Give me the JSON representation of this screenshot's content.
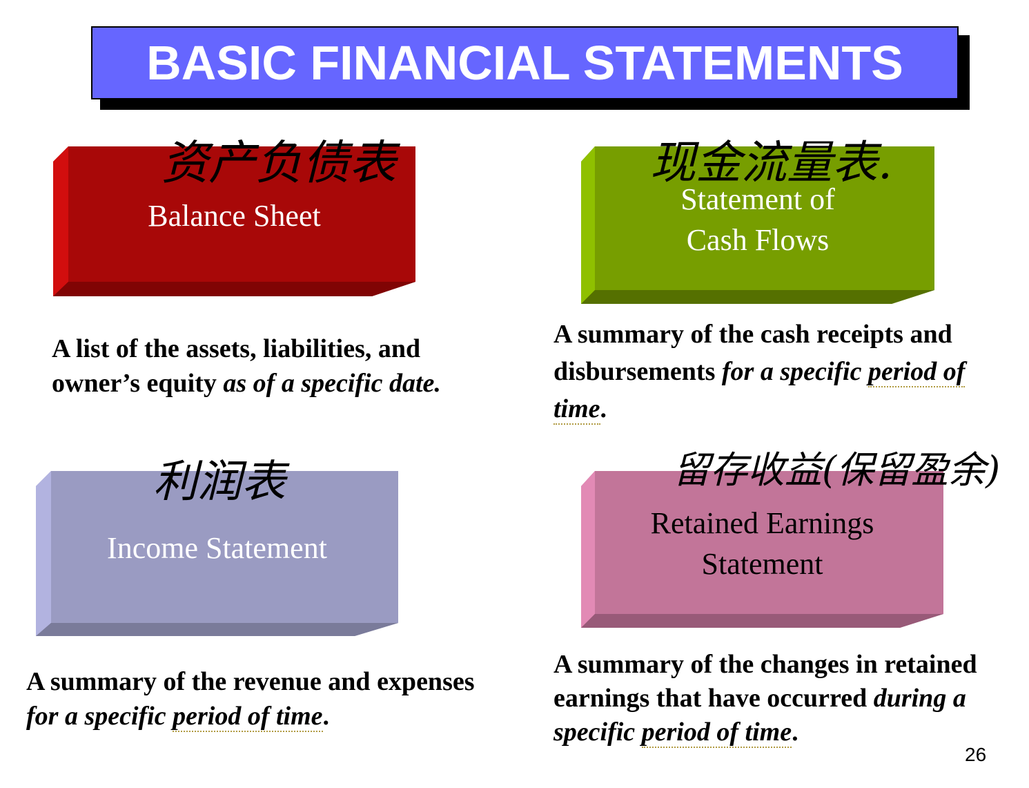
{
  "title": "BASIC FINANCIAL STATEMENTS",
  "page_number": "26",
  "colors": {
    "title_bg": "#6666ff",
    "balance": "#a80808",
    "cash": "#779e00",
    "income": "#9a9bc2",
    "retained": "#c27599"
  },
  "balance": {
    "hand": "资产负债表",
    "label": "Balance Sheet",
    "desc_plain": "A list of the assets, liabilities, and owner’s equity ",
    "desc_italic": "as of a specific date."
  },
  "cash": {
    "hand": "现金流量表.",
    "label_line1": "Statement of",
    "label_line2": "Cash Flows",
    "desc_plain": "A summary of the cash receipts and disbursements ",
    "desc_italic_a": "for a specific ",
    "desc_italic_b": "period of time",
    "desc_end": "."
  },
  "income": {
    "hand": "利润表",
    "label": "Income Statement",
    "desc_plain": "A summary of the revenue and expenses ",
    "desc_italic_a": "for a specific ",
    "desc_italic_b": "period of time",
    "desc_end": "."
  },
  "retained": {
    "hand": "留存收益(保留盈余)",
    "label_line1": "Retained Earnings",
    "label_line2": "Statement",
    "desc_plain": "A summary of the changes in retained earnings that have occurred ",
    "desc_italic_a": "during a specific ",
    "desc_italic_b": "period of time",
    "desc_end": "."
  }
}
